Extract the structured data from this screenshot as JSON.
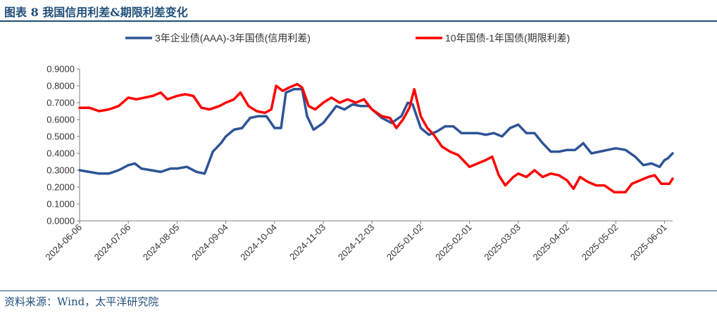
{
  "header": {
    "title": "图表 8 我国信用利差&期限利差变化"
  },
  "footer": {
    "source": "资料来源：Wind，太平洋研究院"
  },
  "colors": {
    "blue": "#2e5496",
    "red": "#ff0000",
    "accent": "#1f4e79"
  },
  "chart_data": {
    "type": "line",
    "title": "",
    "xlabel": "",
    "ylabel": "",
    "ylim": [
      0,
      0.9
    ],
    "yticks": [
      "0.0000",
      "0.1000",
      "0.2000",
      "0.3000",
      "0.4000",
      "0.5000",
      "0.6000",
      "0.7000",
      "0.8000",
      "0.9000"
    ],
    "xticks": [
      "2024-06-06",
      "2024-07-06",
      "2024-08-05",
      "2024-09-04",
      "2024-10-04",
      "2024-11-03",
      "2024-12-03",
      "2025-01-02",
      "2025-02-01",
      "2025-03-03",
      "2025-04-02",
      "2025-05-02",
      "2025-06-01"
    ],
    "legend_position": "top",
    "x_start": "2024-06-06",
    "x_end": "2025-06-06",
    "series": [
      {
        "name": "3年企业债(AAA)-3年国债(信用利差)",
        "color": "#2e5496",
        "points": [
          [
            "2024-06-06",
            0.3
          ],
          [
            "2024-06-12",
            0.29
          ],
          [
            "2024-06-18",
            0.28
          ],
          [
            "2024-06-24",
            0.28
          ],
          [
            "2024-06-30",
            0.3
          ],
          [
            "2024-07-06",
            0.33
          ],
          [
            "2024-07-10",
            0.34
          ],
          [
            "2024-07-14",
            0.31
          ],
          [
            "2024-07-20",
            0.3
          ],
          [
            "2024-07-26",
            0.29
          ],
          [
            "2024-08-01",
            0.31
          ],
          [
            "2024-08-05",
            0.31
          ],
          [
            "2024-08-11",
            0.32
          ],
          [
            "2024-08-17",
            0.29
          ],
          [
            "2024-08-22",
            0.28
          ],
          [
            "2024-08-27",
            0.41
          ],
          [
            "2024-09-01",
            0.46
          ],
          [
            "2024-09-04",
            0.5
          ],
          [
            "2024-09-09",
            0.54
          ],
          [
            "2024-09-14",
            0.55
          ],
          [
            "2024-09-19",
            0.61
          ],
          [
            "2024-09-24",
            0.62
          ],
          [
            "2024-09-29",
            0.62
          ],
          [
            "2024-10-04",
            0.55
          ],
          [
            "2024-10-08",
            0.55
          ],
          [
            "2024-10-11",
            0.76
          ],
          [
            "2024-10-16",
            0.78
          ],
          [
            "2024-10-21",
            0.78
          ],
          [
            "2024-10-24",
            0.62
          ],
          [
            "2024-10-28",
            0.54
          ],
          [
            "2024-11-03",
            0.58
          ],
          [
            "2024-11-07",
            0.63
          ],
          [
            "2024-11-11",
            0.68
          ],
          [
            "2024-11-16",
            0.66
          ],
          [
            "2024-11-21",
            0.69
          ],
          [
            "2024-11-26",
            0.68
          ],
          [
            "2024-12-01",
            0.68
          ],
          [
            "2024-12-03",
            0.66
          ],
          [
            "2024-12-09",
            0.61
          ],
          [
            "2024-12-15",
            0.58
          ],
          [
            "2024-12-21",
            0.62
          ],
          [
            "2024-12-25",
            0.7
          ],
          [
            "2024-12-28",
            0.69
          ],
          [
            "2025-01-02",
            0.55
          ],
          [
            "2025-01-07",
            0.51
          ],
          [
            "2025-01-12",
            0.53
          ],
          [
            "2025-01-17",
            0.56
          ],
          [
            "2025-01-22",
            0.56
          ],
          [
            "2025-01-27",
            0.52
          ],
          [
            "2025-02-01",
            0.52
          ],
          [
            "2025-02-06",
            0.52
          ],
          [
            "2025-02-11",
            0.51
          ],
          [
            "2025-02-16",
            0.52
          ],
          [
            "2025-02-21",
            0.5
          ],
          [
            "2025-02-26",
            0.55
          ],
          [
            "2025-03-03",
            0.57
          ],
          [
            "2025-03-08",
            0.52
          ],
          [
            "2025-03-13",
            0.52
          ],
          [
            "2025-03-18",
            0.46
          ],
          [
            "2025-03-23",
            0.41
          ],
          [
            "2025-03-28",
            0.41
          ],
          [
            "2025-04-02",
            0.42
          ],
          [
            "2025-04-07",
            0.42
          ],
          [
            "2025-04-12",
            0.46
          ],
          [
            "2025-04-17",
            0.4
          ],
          [
            "2025-04-22",
            0.41
          ],
          [
            "2025-04-27",
            0.42
          ],
          [
            "2025-05-02",
            0.43
          ],
          [
            "2025-05-08",
            0.42
          ],
          [
            "2025-05-14",
            0.38
          ],
          [
            "2025-05-19",
            0.33
          ],
          [
            "2025-05-24",
            0.34
          ],
          [
            "2025-05-29",
            0.32
          ],
          [
            "2025-06-01",
            0.36
          ],
          [
            "2025-06-03",
            0.37
          ],
          [
            "2025-06-06",
            0.4
          ]
        ]
      },
      {
        "name": "10年国债-1年国债(期限利差)",
        "color": "#ff0000",
        "points": [
          [
            "2024-06-06",
            0.67
          ],
          [
            "2024-06-12",
            0.67
          ],
          [
            "2024-06-18",
            0.65
          ],
          [
            "2024-06-24",
            0.66
          ],
          [
            "2024-06-30",
            0.68
          ],
          [
            "2024-07-06",
            0.73
          ],
          [
            "2024-07-11",
            0.72
          ],
          [
            "2024-07-16",
            0.73
          ],
          [
            "2024-07-21",
            0.74
          ],
          [
            "2024-07-26",
            0.76
          ],
          [
            "2024-07-30",
            0.72
          ],
          [
            "2024-08-05",
            0.74
          ],
          [
            "2024-08-10",
            0.75
          ],
          [
            "2024-08-15",
            0.74
          ],
          [
            "2024-08-20",
            0.67
          ],
          [
            "2024-08-25",
            0.66
          ],
          [
            "2024-08-31",
            0.68
          ],
          [
            "2024-09-04",
            0.7
          ],
          [
            "2024-09-09",
            0.72
          ],
          [
            "2024-09-13",
            0.76
          ],
          [
            "2024-09-18",
            0.68
          ],
          [
            "2024-09-23",
            0.65
          ],
          [
            "2024-09-28",
            0.64
          ],
          [
            "2024-10-02",
            0.66
          ],
          [
            "2024-10-05",
            0.8
          ],
          [
            "2024-10-09",
            0.77
          ],
          [
            "2024-10-13",
            0.79
          ],
          [
            "2024-10-18",
            0.81
          ],
          [
            "2024-10-21",
            0.79
          ],
          [
            "2024-10-25",
            0.68
          ],
          [
            "2024-10-29",
            0.66
          ],
          [
            "2024-11-03",
            0.7
          ],
          [
            "2024-11-08",
            0.73
          ],
          [
            "2024-11-13",
            0.7
          ],
          [
            "2024-11-18",
            0.72
          ],
          [
            "2024-11-23",
            0.7
          ],
          [
            "2024-11-28",
            0.72
          ],
          [
            "2024-12-03",
            0.66
          ],
          [
            "2024-12-09",
            0.62
          ],
          [
            "2024-12-14",
            0.61
          ],
          [
            "2024-12-18",
            0.55
          ],
          [
            "2024-12-22",
            0.6
          ],
          [
            "2024-12-26",
            0.67
          ],
          [
            "2024-12-29",
            0.78
          ],
          [
            "2025-01-02",
            0.62
          ],
          [
            "2025-01-06",
            0.55
          ],
          [
            "2025-01-10",
            0.51
          ],
          [
            "2025-01-15",
            0.44
          ],
          [
            "2025-01-20",
            0.41
          ],
          [
            "2025-01-25",
            0.39
          ],
          [
            "2025-01-29",
            0.35
          ],
          [
            "2025-02-01",
            0.32
          ],
          [
            "2025-02-06",
            0.34
          ],
          [
            "2025-02-11",
            0.36
          ],
          [
            "2025-02-15",
            0.38
          ],
          [
            "2025-02-19",
            0.27
          ],
          [
            "2025-02-23",
            0.21
          ],
          [
            "2025-02-28",
            0.26
          ],
          [
            "2025-03-03",
            0.28
          ],
          [
            "2025-03-08",
            0.26
          ],
          [
            "2025-03-13",
            0.3
          ],
          [
            "2025-03-18",
            0.26
          ],
          [
            "2025-03-23",
            0.28
          ],
          [
            "2025-03-28",
            0.27
          ],
          [
            "2025-04-02",
            0.24
          ],
          [
            "2025-04-06",
            0.19
          ],
          [
            "2025-04-10",
            0.26
          ],
          [
            "2025-04-15",
            0.23
          ],
          [
            "2025-04-20",
            0.21
          ],
          [
            "2025-04-25",
            0.21
          ],
          [
            "2025-05-01",
            0.17
          ],
          [
            "2025-05-08",
            0.17
          ],
          [
            "2025-05-12",
            0.22
          ],
          [
            "2025-05-17",
            0.24
          ],
          [
            "2025-05-22",
            0.26
          ],
          [
            "2025-05-26",
            0.27
          ],
          [
            "2025-05-30",
            0.22
          ],
          [
            "2025-06-02",
            0.22
          ],
          [
            "2025-06-04",
            0.22
          ],
          [
            "2025-06-06",
            0.25
          ]
        ]
      }
    ]
  }
}
